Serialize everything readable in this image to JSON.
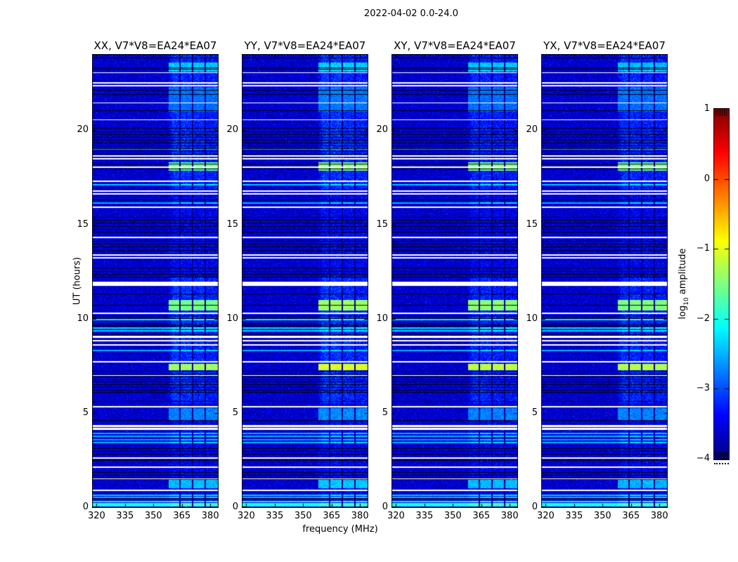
{
  "figure": {
    "background": "#ffffff",
    "text_color": "#000000"
  },
  "chart_data": {
    "type": "heatmap",
    "title": "2022-04-02 0.0-24.0",
    "xlabel": "frequency (MHz)",
    "ylabel": "UT (hours)",
    "x_range": [
      318,
      384
    ],
    "y_range": [
      0,
      24
    ],
    "x_ticks": [
      "320",
      "335",
      "350",
      "365",
      "380"
    ],
    "x_tick_values": [
      320,
      335,
      350,
      365,
      380
    ],
    "y_ticks": [
      "0",
      "5",
      "10",
      "15",
      "20"
    ],
    "y_tick_values": [
      0,
      5,
      10,
      15,
      20
    ],
    "grid": false,
    "panels": [
      {
        "id": "XX",
        "title": "XX, V7*V8=EA24*EA07",
        "seed": 101,
        "band_strength": 1.0
      },
      {
        "id": "YY",
        "title": "YY, V7*V8=EA24*EA07",
        "seed": 202,
        "band_strength": 1.05
      },
      {
        "id": "XY",
        "title": "XY, V7*V8=EA24*EA07",
        "seed": 303,
        "band_strength": 0.85
      },
      {
        "id": "YX",
        "title": "YX, V7*V8=EA24*EA07",
        "seed": 404,
        "band_strength": 0.9
      }
    ],
    "colorbar": {
      "label_prefix": "log",
      "label_sub": "10",
      "label_suffix": " amplitude",
      "ticks": [
        "1",
        "0",
        "−1",
        "−2",
        "−3",
        "−4"
      ],
      "tick_values": [
        1,
        0,
        -1,
        -2,
        -3,
        -4
      ],
      "range": [
        -4,
        1
      ],
      "colormap": "jet"
    },
    "features": {
      "noise_floor_log10": -3.9,
      "band": {
        "range": [
          357.5,
          384
        ],
        "separators": [
          363.9,
          370.7,
          377.4
        ],
        "windows": [
          [
            5.5,
            12.2
          ],
          [
            16.9,
            24.0
          ]
        ],
        "off_window_factor": 0.4
      },
      "blocks": [
        {
          "t": [
            7.28,
            7.62
          ],
          "levels": [
            -1.35,
            -1.05,
            -1.2,
            -1.25
          ]
        },
        {
          "t": [
            10.45,
            11.0
          ],
          "levels": [
            -1.55,
            -1.35,
            -1.45,
            -1.5
          ]
        },
        {
          "t": [
            17.85,
            18.3
          ],
          "levels": [
            -1.6,
            -1.45,
            -1.5,
            -1.55
          ]
        },
        {
          "t": [
            23.1,
            23.58
          ],
          "levels": [
            -2.4,
            -2.35,
            -2.4,
            -2.45
          ]
        },
        {
          "t": [
            1.0,
            1.45
          ],
          "levels": [
            -2.45,
            -2.4,
            -2.45,
            -2.5
          ]
        },
        {
          "t": [
            4.6,
            5.25
          ],
          "levels": [
            -2.75,
            -2.7,
            -2.75,
            -2.75
          ]
        },
        {
          "t": [
            21.0,
            22.3
          ],
          "levels": [
            -2.85,
            -2.8,
            -2.85,
            -2.85
          ]
        }
      ],
      "events": {
        "white_rows": [
          [
            23.05,
            1
          ],
          [
            22.5,
            2
          ],
          [
            22.36,
            2
          ],
          [
            21.45,
            1
          ],
          [
            20.55,
            1
          ],
          [
            18.62,
            2
          ],
          [
            18.5,
            2
          ],
          [
            18.05,
            2
          ],
          [
            17.3,
            2
          ],
          [
            16.78,
            2
          ],
          [
            16.62,
            2
          ],
          [
            15.92,
            2
          ],
          [
            14.32,
            2
          ],
          [
            13.38,
            2
          ],
          [
            13.24,
            2
          ],
          [
            11.92,
            3
          ],
          [
            11.78,
            3
          ],
          [
            10.28,
            2
          ],
          [
            9.02,
            3
          ],
          [
            8.82,
            2
          ],
          [
            8.6,
            2
          ],
          [
            7.72,
            2
          ],
          [
            6.98,
            1
          ],
          [
            5.32,
            2
          ],
          [
            4.3,
            3
          ],
          [
            4.15,
            3
          ],
          [
            2.62,
            2
          ],
          [
            2.12,
            2
          ],
          [
            1.5,
            1
          ],
          [
            0.9,
            2
          ]
        ],
        "black_rows": [
          [
            23.82
          ],
          [
            23.3
          ],
          [
            23.22
          ],
          [
            22.1
          ],
          [
            21.9
          ],
          [
            21.05
          ],
          [
            20.1
          ],
          [
            19.93
          ],
          [
            19.78
          ],
          [
            19.62
          ],
          [
            19.47
          ],
          [
            19.32
          ],
          [
            19.17
          ],
          [
            19.02
          ],
          [
            18.87
          ],
          [
            18.72
          ],
          [
            18.22
          ],
          [
            17.95
          ],
          [
            16.8
          ],
          [
            16.3
          ],
          [
            15.38
          ],
          [
            15.22
          ],
          [
            15.06
          ],
          [
            14.9
          ],
          [
            14.74
          ],
          [
            14.58
          ],
          [
            14.12
          ],
          [
            13.96
          ],
          [
            13.8
          ],
          [
            13.62
          ],
          [
            12.68
          ],
          [
            12.52
          ],
          [
            12.36
          ],
          [
            12.2
          ],
          [
            11.3
          ],
          [
            10.72
          ],
          [
            10.15
          ],
          [
            10.0
          ],
          [
            9.68
          ],
          [
            9.58
          ],
          [
            9.15
          ],
          [
            7.2
          ],
          [
            7.06
          ],
          [
            6.92
          ],
          [
            6.78
          ],
          [
            6.64
          ],
          [
            6.5
          ],
          [
            6.36
          ],
          [
            6.22
          ],
          [
            6.08
          ],
          [
            5.6
          ],
          [
            4.6
          ],
          [
            3.12
          ],
          [
            2.97
          ],
          [
            2.82
          ],
          [
            2.47
          ],
          [
            1.86
          ],
          [
            1.71
          ],
          [
            1.56
          ],
          [
            0.45
          ]
        ],
        "cyan_rows": [
          [
            19.0,
            -2.6,
            1
          ],
          [
            17.12,
            -2.4,
            2
          ],
          [
            16.12,
            -2.5,
            2
          ],
          [
            9.95,
            -2.2,
            2
          ],
          [
            9.5,
            -2.3,
            2
          ],
          [
            9.36,
            -2.3,
            2
          ],
          [
            8.3,
            -2.5,
            2
          ],
          [
            3.92,
            -2.5,
            2
          ],
          [
            3.76,
            -2.5,
            2
          ],
          [
            3.58,
            -2.6,
            2
          ],
          [
            3.42,
            -2.5,
            2
          ],
          [
            0.65,
            -2.4,
            2
          ],
          [
            0.52,
            -2.5,
            2
          ],
          [
            0.28,
            -2.1,
            2
          ],
          [
            0.18,
            -2.0,
            3
          ],
          [
            0.08,
            -2.1,
            2
          ]
        ]
      }
    }
  }
}
